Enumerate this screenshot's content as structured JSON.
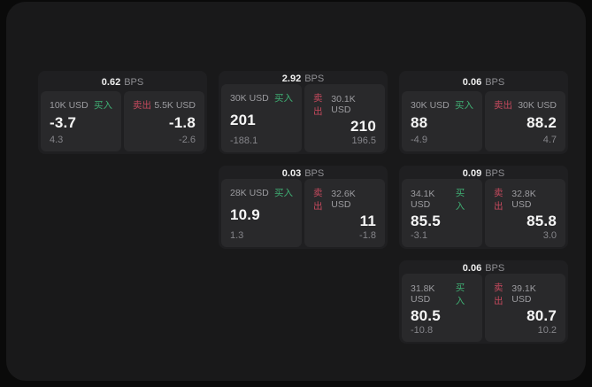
{
  "colors": {
    "buy_green": "#3fae73",
    "sell_red": "#c4495d",
    "window_bg": "#19191a",
    "card_bg": "#1f1f21",
    "pane_bg": "#29292b"
  },
  "labels": {
    "bps_unit": "BPS",
    "buy": "买入",
    "sell": "卖出"
  },
  "cards": [
    {
      "bps": "0.62",
      "buy": {
        "amount": "10K USD",
        "price": "-3.7",
        "delta": "4.3"
      },
      "sell": {
        "amount": "5.5K USD",
        "price": "-1.8",
        "delta": "-2.6"
      }
    },
    {
      "bps": "2.92",
      "buy": {
        "amount": "30K USD",
        "price": "201",
        "delta": "-188.1"
      },
      "sell": {
        "amount": "30.1K USD",
        "price": "210",
        "delta": "196.5"
      }
    },
    {
      "bps": "0.06",
      "buy": {
        "amount": "30K USD",
        "price": "88",
        "delta": "-4.9"
      },
      "sell": {
        "amount": "30K USD",
        "price": "88.2",
        "delta": "4.7"
      }
    },
    {
      "bps": "0.03",
      "buy": {
        "amount": "28K USD",
        "price": "10.9",
        "delta": "1.3"
      },
      "sell": {
        "amount": "32.6K USD",
        "price": "11",
        "delta": "-1.8"
      }
    },
    {
      "bps": "0.09",
      "buy": {
        "amount": "34.1K USD",
        "price": "85.5",
        "delta": "-3.1"
      },
      "sell": {
        "amount": "32.8K USD",
        "price": "85.8",
        "delta": "3.0"
      }
    },
    {
      "bps": "0.06",
      "buy": {
        "amount": "31.8K USD",
        "price": "80.5",
        "delta": "-10.8"
      },
      "sell": {
        "amount": "39.1K USD",
        "price": "80.7",
        "delta": "10.2"
      }
    }
  ]
}
